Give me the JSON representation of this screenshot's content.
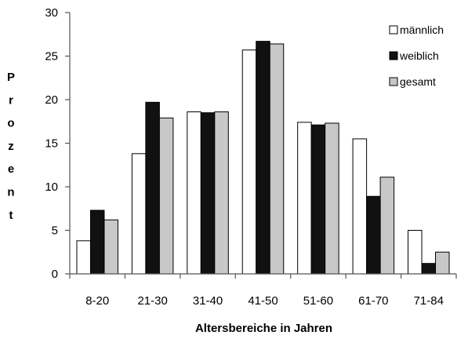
{
  "chart_data": {
    "type": "bar",
    "categories": [
      "8-20",
      "21-30",
      "31-40",
      "41-50",
      "51-60",
      "61-70",
      "71-84"
    ],
    "series": [
      {
        "name": "männlich",
        "color": "#ffffff",
        "values": [
          3.8,
          13.8,
          18.6,
          25.7,
          17.4,
          15.5,
          5.0
        ]
      },
      {
        "name": "weiblich",
        "color": "#111111",
        "values": [
          7.3,
          19.7,
          18.5,
          26.7,
          17.1,
          8.9,
          1.2
        ]
      },
      {
        "name": "gesamt",
        "color": "#c8c8c8",
        "values": [
          6.2,
          17.9,
          18.6,
          26.4,
          17.3,
          11.1,
          2.5
        ]
      }
    ],
    "xlabel": "Altersbereiche in Jahren",
    "ylabel": "Prozent",
    "ylim": [
      0,
      30
    ],
    "yticks": [
      "0",
      "5",
      "10",
      "15",
      "20",
      "25",
      "30"
    ],
    "grid": false,
    "legend_position": "top-right"
  }
}
